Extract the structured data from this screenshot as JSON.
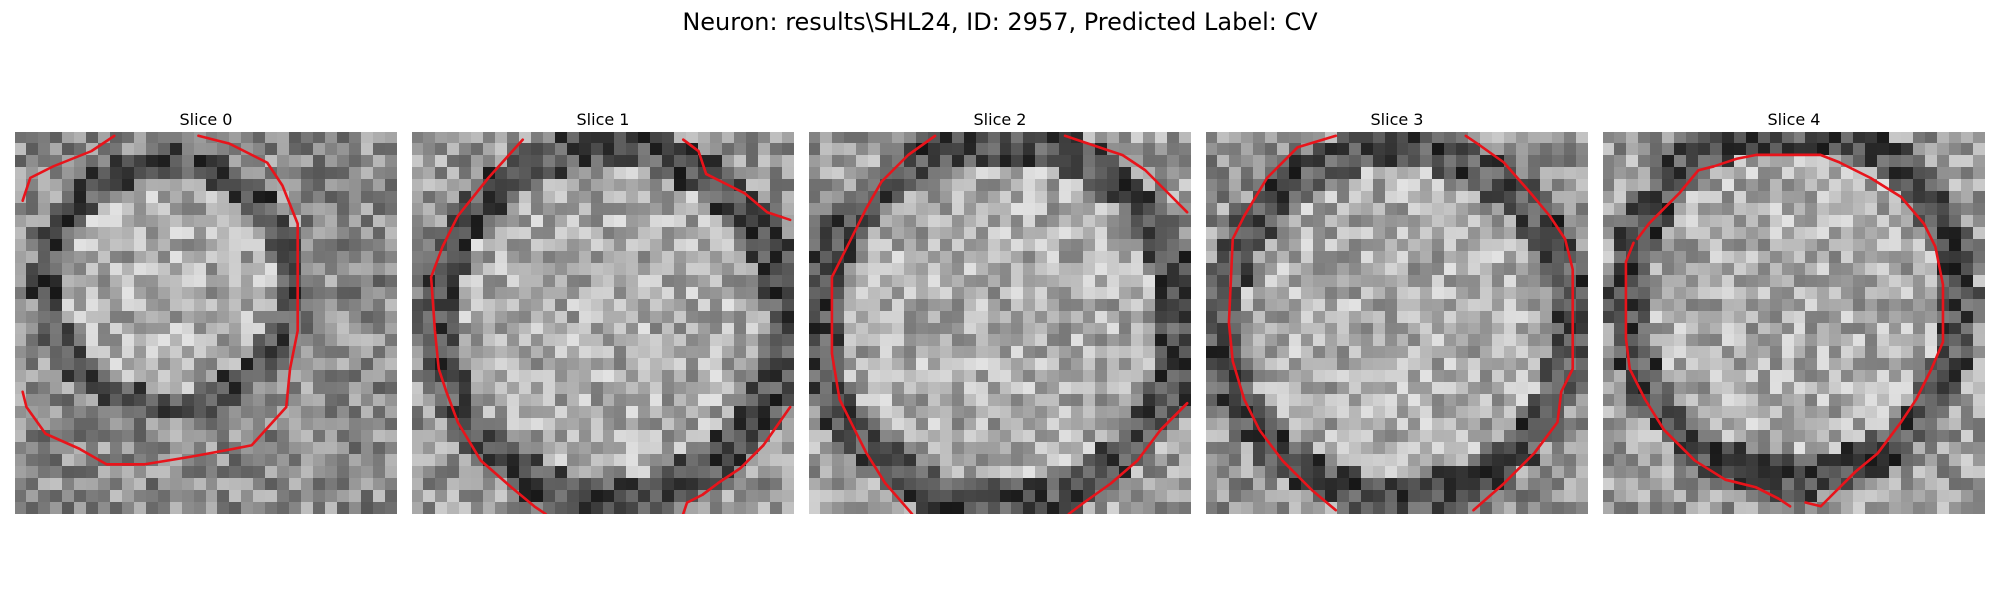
{
  "figure": {
    "title": "Neuron: results\\SHL24, ID: 2957, Predicted Label: CV"
  },
  "panels": [
    {
      "title": "Slice 0"
    },
    {
      "title": "Slice 1"
    },
    {
      "title": "Slice 2"
    },
    {
      "title": "Slice 3"
    },
    {
      "title": "Slice 4"
    }
  ],
  "colors": {
    "contour": "#e8141b",
    "background": "#ffffff"
  }
}
